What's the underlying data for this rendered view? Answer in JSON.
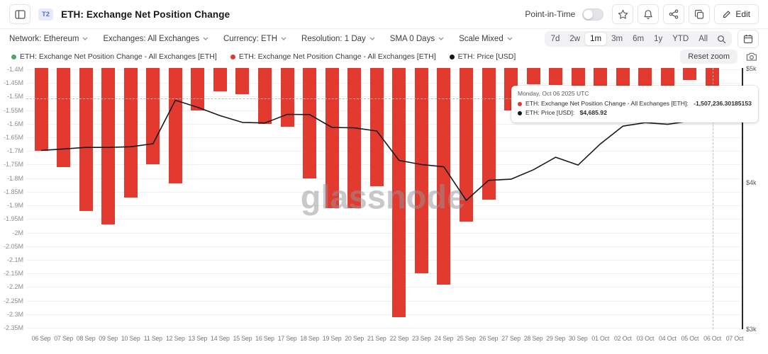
{
  "header": {
    "badge": "T2",
    "title": "ETH: Exchange Net Position Change",
    "point_in_time_label": "Point-in-Time",
    "edit_label": "Edit"
  },
  "filters": [
    {
      "id": "network",
      "label": "Network: Ethereum"
    },
    {
      "id": "exchanges",
      "label": "Exchanges: All Exchanges"
    },
    {
      "id": "currency",
      "label": "Currency: ETH"
    },
    {
      "id": "resolution",
      "label": "Resolution: 1 Day"
    },
    {
      "id": "sma",
      "label": "SMA 0 Days"
    },
    {
      "id": "scale",
      "label": "Scale Mixed"
    }
  ],
  "ranges": {
    "items": [
      "7d",
      "2w",
      "1m",
      "3m",
      "6m",
      "1y",
      "YTD",
      "All"
    ],
    "active": "1m"
  },
  "legend": [
    {
      "color": "#4ca46c",
      "label": "ETH: Exchange Net Position Change - All Exchanges [ETH]"
    },
    {
      "color": "#e23a2e",
      "label": "ETH: Exchange Net Position Change - All Exchanges [ETH]"
    },
    {
      "color": "#151519",
      "label": "ETH: Price [USD]"
    }
  ],
  "reset_zoom_label": "Reset zoom",
  "watermark": "glassnode",
  "tooltip": {
    "date": "Monday, Oct 06 2025 UTC",
    "rows": [
      {
        "color": "#e23a2e",
        "label": "ETH: Exchange Net Position Change - All Exchanges [ETH]:",
        "value": "-1,507,236.30185153"
      },
      {
        "color": "#151519",
        "label": "ETH: Price [USD]:",
        "value": "$4,685.92"
      }
    ]
  },
  "chart_data": {
    "type": "bar+line",
    "categories": [
      "06 Sep",
      "07 Sep",
      "08 Sep",
      "09 Sep",
      "10 Sep",
      "11 Sep",
      "12 Sep",
      "13 Sep",
      "14 Sep",
      "15 Sep",
      "16 Sep",
      "17 Sep",
      "18 Sep",
      "19 Sep",
      "20 Sep",
      "21 Sep",
      "22 Sep",
      "23 Sep",
      "24 Sep",
      "25 Sep",
      "26 Sep",
      "27 Sep",
      "28 Sep",
      "29 Sep",
      "30 Sep",
      "01 Oct",
      "02 Oct",
      "03 Oct",
      "04 Oct",
      "05 Oct",
      "06 Oct",
      "07 Oct"
    ],
    "series": [
      {
        "name": "ETH: Exchange Net Position Change - All Exchanges [ETH]",
        "type": "bar",
        "axis": "left",
        "color": "#e23a2e",
        "values": [
          -1700000,
          -1760000,
          -1920000,
          -1970000,
          -1870000,
          -1750000,
          -1820000,
          -1550000,
          -1480000,
          -1490000,
          -1600000,
          -1610000,
          -1800000,
          -1910000,
          -1910000,
          -1830000,
          -2310000,
          -2150000,
          -2190000,
          -1960000,
          -1880000,
          -1550000,
          -1455000,
          -1456000,
          -1461000,
          -1463000,
          -1465000,
          -1461000,
          -1463000,
          -1440000,
          -1507236.30185153,
          null
        ]
      },
      {
        "name": "ETH: Price [USD]",
        "type": "line",
        "axis": "right",
        "color": "#1a1a1e",
        "values": [
          4260,
          4272,
          4285,
          4285,
          4290,
          4316,
          4700,
          4635,
          4560,
          4500,
          4495,
          4572,
          4570,
          4456,
          4452,
          4425,
          4177,
          4143,
          4125,
          3862,
          4017,
          4026,
          4101,
          4203,
          4139,
          4315,
          4467,
          4498,
          4483,
          4512,
          4685.92,
          null
        ]
      }
    ],
    "left_axis": {
      "max": -1400000,
      "min": -2350000,
      "tick_step": 50000,
      "tick_labels": [
        "-1.4M",
        "-1.45M",
        "-1.5M",
        "-1.55M",
        "-1.6M",
        "-1.65M",
        "-1.7M",
        "-1.75M",
        "-1.8M",
        "-1.85M",
        "-1.9M",
        "-1.95M",
        "-2M",
        "-2.05M",
        "-2.1M",
        "-2.15M",
        "-2.2M",
        "-2.25M",
        "-2.3M",
        "-2.35M"
      ]
    },
    "right_axis": {
      "scale": "log",
      "max": 5000,
      "min": 3000,
      "ticks": [
        {
          "label": "$5k",
          "value": 5000
        },
        {
          "label": "$4k",
          "value": 4000
        },
        {
          "label": "$3k",
          "value": 3000
        }
      ]
    },
    "grid": true,
    "legend_position": "top-left",
    "crosshair": {
      "category": "06 Oct",
      "index": 30,
      "value": -1507236.30185153
    }
  }
}
